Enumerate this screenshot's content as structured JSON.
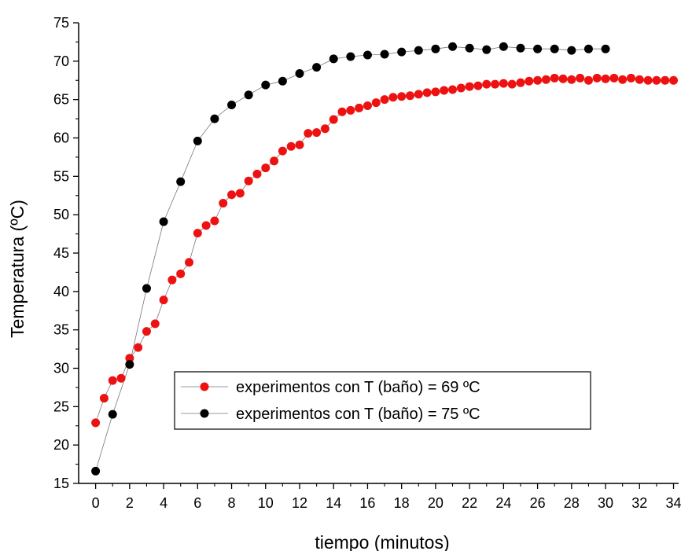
{
  "chart_data": {
    "type": "scatter",
    "title": "",
    "xlabel": "tiempo (minutos)",
    "ylabel": "Temperatura (ºC)",
    "xlim": [
      -1,
      34.3
    ],
    "ylim": [
      15,
      75
    ],
    "x_ticks": [
      0,
      2,
      4,
      6,
      8,
      10,
      12,
      14,
      16,
      18,
      20,
      22,
      24,
      26,
      28,
      30,
      32,
      34
    ],
    "y_ticks": [
      15,
      20,
      25,
      30,
      35,
      40,
      45,
      50,
      55,
      60,
      65,
      70,
      75
    ],
    "grid": false,
    "legend_position": "bottom-center",
    "series": [
      {
        "name": "experimentos con T (baño) = 69 ºC",
        "color": "#ee1111",
        "marker": "circle",
        "line": "thin-gray",
        "x": [
          0,
          0.5,
          1,
          1.5,
          2,
          2.5,
          3,
          3.5,
          4,
          4.5,
          5,
          5.5,
          6,
          6.5,
          7,
          7.5,
          8,
          8.5,
          9,
          9.5,
          10,
          10.5,
          11,
          11.5,
          12,
          12.5,
          13,
          13.5,
          14,
          14.5,
          15,
          15.5,
          16,
          16.5,
          17,
          17.5,
          18,
          18.5,
          19,
          19.5,
          20,
          20.5,
          21,
          21.5,
          22,
          22.5,
          23,
          23.5,
          24,
          24.5,
          25,
          25.5,
          26,
          26.5,
          27,
          27.5,
          28,
          28.5,
          29,
          29.5,
          30,
          30.5,
          31,
          31.5,
          32,
          32.5,
          33,
          33.5,
          34
        ],
        "y": [
          22.9,
          26.1,
          28.4,
          28.7,
          31.3,
          32.7,
          34.8,
          35.8,
          38.9,
          41.5,
          42.3,
          43.8,
          47.6,
          48.6,
          49.2,
          51.5,
          52.6,
          52.8,
          54.4,
          55.3,
          56.1,
          57.0,
          58.3,
          58.9,
          59.1,
          60.6,
          60.7,
          61.2,
          62.4,
          63.4,
          63.6,
          63.9,
          64.2,
          64.6,
          65.0,
          65.3,
          65.4,
          65.5,
          65.7,
          65.9,
          66.0,
          66.2,
          66.3,
          66.5,
          66.7,
          66.8,
          67.0,
          67.0,
          67.1,
          67.0,
          67.2,
          67.4,
          67.5,
          67.6,
          67.8,
          67.7,
          67.6,
          67.8,
          67.5,
          67.8,
          67.7,
          67.8,
          67.6,
          67.8,
          67.6,
          67.5,
          67.5,
          67.5,
          67.5
        ]
      },
      {
        "name": "experimentos con T (baño) = 75 ºC",
        "color": "#000000",
        "marker": "circle",
        "line": "thin-gray",
        "x": [
          0,
          1,
          2,
          3,
          4,
          5,
          6,
          7,
          8,
          9,
          10,
          11,
          12,
          13,
          14,
          15,
          16,
          17,
          18,
          19,
          20,
          21,
          22,
          23,
          24,
          25,
          26,
          27,
          28,
          29,
          30
        ],
        "y": [
          16.6,
          24.0,
          30.5,
          40.4,
          49.1,
          54.3,
          59.6,
          62.5,
          64.3,
          65.6,
          66.9,
          67.4,
          68.4,
          69.2,
          70.3,
          70.6,
          70.8,
          70.9,
          71.2,
          71.4,
          71.6,
          71.9,
          71.7,
          71.5,
          71.9,
          71.7,
          71.6,
          71.6,
          71.4,
          71.6,
          71.6
        ]
      }
    ]
  }
}
